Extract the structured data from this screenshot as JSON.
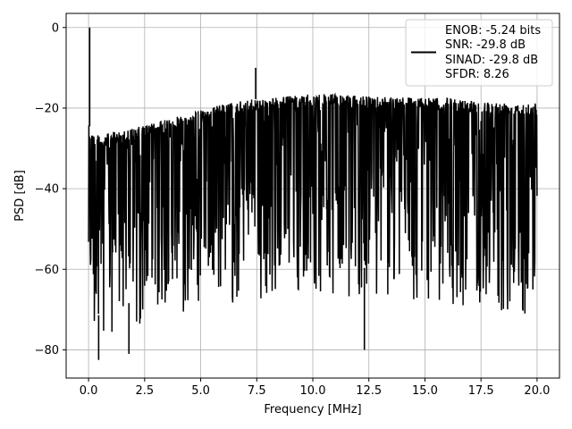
{
  "chart_data": {
    "type": "line",
    "xlabel": "Frequency [MHz]",
    "ylabel": "PSD [dB]",
    "xlim": [
      -1.0,
      21.0
    ],
    "ylim": [
      -87,
      3.5
    ],
    "x_ticks": [
      0.0,
      2.5,
      5.0,
      7.5,
      10.0,
      12.5,
      15.0,
      17.5,
      20.0
    ],
    "x_tick_labels": [
      "0.0",
      "2.5",
      "5.0",
      "7.5",
      "10.0",
      "12.5",
      "15.0",
      "17.5",
      "20.0"
    ],
    "y_ticks": [
      0,
      -20,
      -40,
      -60,
      -80
    ],
    "y_tick_labels": [
      "0",
      "−20",
      "−40",
      "−60",
      "−80"
    ],
    "grid": true,
    "legend_position": "top-right",
    "series": [
      {
        "color": "#000000",
        "x_range": [
          0.0,
          20.0
        ],
        "upper_envelope": [
          [
            0.0,
            -24
          ],
          [
            0.2,
            -26
          ],
          [
            0.5,
            -27
          ],
          [
            1.0,
            -26
          ],
          [
            2.0,
            -25
          ],
          [
            3.0,
            -23.5
          ],
          [
            4.0,
            -22
          ],
          [
            5.0,
            -20.5
          ],
          [
            6.0,
            -19
          ],
          [
            7.0,
            -18
          ],
          [
            8.0,
            -17.5
          ],
          [
            9.0,
            -17
          ],
          [
            10.0,
            -16.5
          ],
          [
            11.0,
            -16.5
          ],
          [
            12.0,
            -17
          ],
          [
            13.0,
            -17
          ],
          [
            14.0,
            -17
          ],
          [
            15.0,
            -17.5
          ],
          [
            16.0,
            -17.5
          ],
          [
            17.0,
            -18
          ],
          [
            18.0,
            -18.5
          ],
          [
            19.0,
            -18.5
          ],
          [
            20.0,
            -18.5
          ]
        ],
        "noise_floor": [
          [
            0.0,
            -66
          ],
          [
            0.5,
            -72
          ],
          [
            1.0,
            -70
          ],
          [
            2.0,
            -68
          ],
          [
            3.0,
            -65
          ],
          [
            4.0,
            -63
          ],
          [
            5.0,
            -62
          ],
          [
            7.0,
            -60
          ],
          [
            9.0,
            -59
          ],
          [
            11.0,
            -59
          ],
          [
            13.0,
            -60
          ],
          [
            15.0,
            -61
          ],
          [
            17.0,
            -61
          ],
          [
            18.0,
            -62
          ],
          [
            19.0,
            -63
          ],
          [
            20.0,
            -64
          ]
        ],
        "peaks": [
          {
            "x": 0.05,
            "y": 0.0
          },
          {
            "x": 7.45,
            "y": -10.0
          },
          {
            "x": 12.3,
            "y": -80.0
          },
          {
            "x": 0.45,
            "y": -82.5
          },
          {
            "x": 1.8,
            "y": -81.0
          }
        ]
      }
    ],
    "legend": {
      "lines": [
        "ENOB: -5.24 bits",
        "SNR: -29.8 dB",
        "SINAD: -29.8 dB",
        "SFDR: 8.26"
      ]
    }
  }
}
